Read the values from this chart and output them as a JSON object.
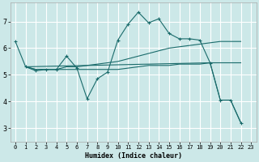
{
  "xlabel": "Humidex (Indice chaleur)",
  "bg_color": "#cce8e8",
  "grid_color": "#ffffff",
  "line_color": "#1a6b6b",
  "xlim": [
    -0.5,
    23.5
  ],
  "ylim": [
    2.5,
    7.7
  ],
  "yticks": [
    3,
    4,
    5,
    6,
    7
  ],
  "xticks": [
    0,
    1,
    2,
    3,
    4,
    5,
    6,
    7,
    8,
    9,
    10,
    11,
    12,
    13,
    14,
    15,
    16,
    17,
    18,
    19,
    20,
    21,
    22,
    23
  ],
  "line_zigzag": {
    "x": [
      0,
      1,
      2,
      3,
      4,
      5,
      6,
      7,
      8,
      9,
      10,
      11,
      12,
      13,
      14,
      15,
      16,
      17,
      18,
      19,
      20,
      21,
      22
    ],
    "y": [
      6.25,
      5.3,
      5.15,
      5.2,
      5.2,
      5.7,
      5.25,
      4.1,
      4.85,
      5.1,
      6.3,
      6.9,
      7.35,
      6.95,
      7.1,
      6.55,
      6.35,
      6.35,
      6.3,
      5.45,
      4.05,
      4.05,
      3.2
    ]
  },
  "line_flat": {
    "x": [
      1,
      2,
      3,
      4,
      5,
      6,
      7,
      8,
      9,
      10,
      11,
      12,
      13,
      14,
      15,
      16,
      17,
      18,
      19,
      20,
      21,
      22
    ],
    "y": [
      5.3,
      5.2,
      5.2,
      5.2,
      5.2,
      5.2,
      5.2,
      5.2,
      5.2,
      5.2,
      5.25,
      5.3,
      5.35,
      5.35,
      5.35,
      5.4,
      5.4,
      5.4,
      5.45,
      5.45,
      5.45,
      5.45
    ]
  },
  "line_rising1": {
    "x": [
      1,
      2,
      3,
      4,
      5,
      6,
      7,
      8,
      9,
      10,
      11,
      12,
      13,
      14,
      15,
      16,
      17,
      18,
      19,
      20,
      21,
      22
    ],
    "y": [
      5.3,
      5.2,
      5.2,
      5.2,
      5.3,
      5.3,
      5.35,
      5.4,
      5.45,
      5.5,
      5.6,
      5.7,
      5.8,
      5.9,
      6.0,
      6.05,
      6.1,
      6.15,
      6.2,
      6.25,
      6.25,
      6.25
    ]
  },
  "line_diagonal": {
    "x": [
      1,
      19,
      20,
      21,
      22
    ],
    "y": [
      5.3,
      5.45,
      4.05,
      4.05,
      3.2
    ]
  }
}
